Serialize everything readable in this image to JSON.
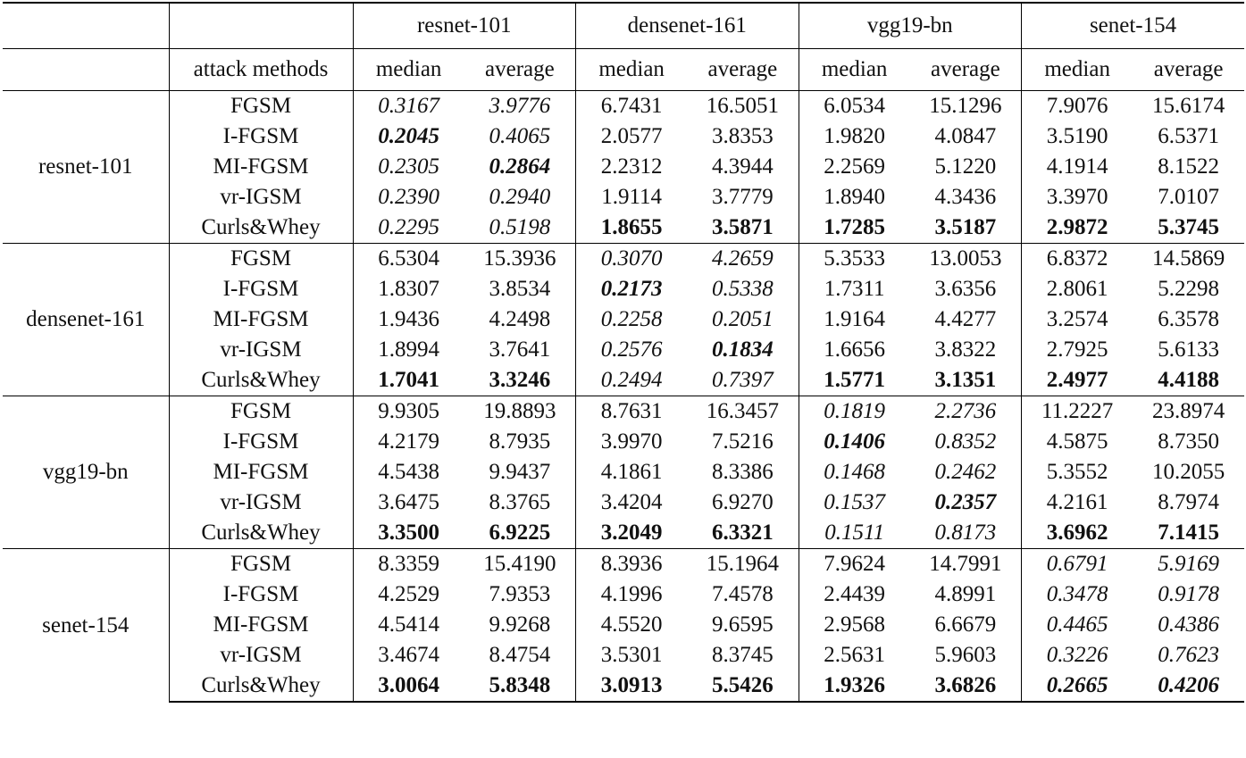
{
  "header": {
    "source_models": [
      "resnet-101",
      "densenet-161",
      "vgg19-bn",
      "senet-154"
    ],
    "method_column_label": "attack methods",
    "stat_labels": [
      "median",
      "average"
    ]
  },
  "groups": [
    {
      "model": "resnet-101",
      "rows": [
        {
          "method": "FGSM",
          "values": [
            "0.3167",
            "3.9776",
            "6.7431",
            "16.5051",
            "6.0534",
            "15.1296",
            "7.9076",
            "15.6174"
          ],
          "styles": [
            "i",
            "i",
            "",
            "",
            "",
            "",
            "",
            ""
          ]
        },
        {
          "method": "I-FGSM",
          "values": [
            "0.2045",
            "0.4065",
            "2.0577",
            "3.8353",
            "1.9820",
            "4.0847",
            "3.5190",
            "6.5371"
          ],
          "styles": [
            "bi",
            "i",
            "",
            "",
            "",
            "",
            "",
            ""
          ]
        },
        {
          "method": "MI-FGSM",
          "values": [
            "0.2305",
            "0.2864",
            "2.2312",
            "4.3944",
            "2.2569",
            "5.1220",
            "4.1914",
            "8.1522"
          ],
          "styles": [
            "i",
            "bi",
            "",
            "",
            "",
            "",
            "",
            ""
          ]
        },
        {
          "method": "vr-IGSM",
          "values": [
            "0.2390",
            "0.2940",
            "1.9114",
            "3.7779",
            "1.8940",
            "4.3436",
            "3.3970",
            "7.0107"
          ],
          "styles": [
            "i",
            "i",
            "",
            "",
            "",
            "",
            "",
            ""
          ]
        },
        {
          "method": "Curls&Whey",
          "values": [
            "0.2295",
            "0.5198",
            "1.8655",
            "3.5871",
            "1.7285",
            "3.5187",
            "2.9872",
            "5.3745"
          ],
          "styles": [
            "i",
            "i",
            "b",
            "b",
            "b",
            "b",
            "b",
            "b"
          ]
        }
      ]
    },
    {
      "model": "densenet-161",
      "rows": [
        {
          "method": "FGSM",
          "values": [
            "6.5304",
            "15.3936",
            "0.3070",
            "4.2659",
            "5.3533",
            "13.0053",
            "6.8372",
            "14.5869"
          ],
          "styles": [
            "",
            "",
            "i",
            "i",
            "",
            "",
            "",
            ""
          ]
        },
        {
          "method": "I-FGSM",
          "values": [
            "1.8307",
            "3.8534",
            "0.2173",
            "0.5338",
            "1.7311",
            "3.6356",
            "2.8061",
            "5.2298"
          ],
          "styles": [
            "",
            "",
            "bi",
            "i",
            "",
            "",
            "",
            ""
          ]
        },
        {
          "method": "MI-FGSM",
          "values": [
            "1.9436",
            "4.2498",
            "0.2258",
            "0.2051",
            "1.9164",
            "4.4277",
            "3.2574",
            "6.3578"
          ],
          "styles": [
            "",
            "",
            "i",
            "i",
            "",
            "",
            "",
            ""
          ]
        },
        {
          "method": "vr-IGSM",
          "values": [
            "1.8994",
            "3.7641",
            "0.2576",
            "0.1834",
            "1.6656",
            "3.8322",
            "2.7925",
            "5.6133"
          ],
          "styles": [
            "",
            "",
            "i",
            "bi",
            "",
            "",
            "",
            ""
          ]
        },
        {
          "method": "Curls&Whey",
          "values": [
            "1.7041",
            "3.3246",
            "0.2494",
            "0.7397",
            "1.5771",
            "3.1351",
            "2.4977",
            "4.4188"
          ],
          "styles": [
            "b",
            "b",
            "i",
            "i",
            "b",
            "b",
            "b",
            "b"
          ]
        }
      ]
    },
    {
      "model": "vgg19-bn",
      "rows": [
        {
          "method": "FGSM",
          "values": [
            "9.9305",
            "19.8893",
            "8.7631",
            "16.3457",
            "0.1819",
            "2.2736",
            "11.2227",
            "23.8974"
          ],
          "styles": [
            "",
            "",
            "",
            "",
            "i",
            "i",
            "",
            ""
          ]
        },
        {
          "method": "I-FGSM",
          "values": [
            "4.2179",
            "8.7935",
            "3.9970",
            "7.5216",
            "0.1406",
            "0.8352",
            "4.5875",
            "8.7350"
          ],
          "styles": [
            "",
            "",
            "",
            "",
            "bi",
            "i",
            "",
            ""
          ]
        },
        {
          "method": "MI-FGSM",
          "values": [
            "4.5438",
            "9.9437",
            "4.1861",
            "8.3386",
            "0.1468",
            "0.2462",
            "5.3552",
            "10.2055"
          ],
          "styles": [
            "",
            "",
            "",
            "",
            "i",
            "i",
            "",
            ""
          ]
        },
        {
          "method": "vr-IGSM",
          "values": [
            "3.6475",
            "8.3765",
            "3.4204",
            "6.9270",
            "0.1537",
            "0.2357",
            "4.2161",
            "8.7974"
          ],
          "styles": [
            "",
            "",
            "",
            "",
            "i",
            "bi",
            "",
            ""
          ]
        },
        {
          "method": "Curls&Whey",
          "values": [
            "3.3500",
            "6.9225",
            "3.2049",
            "6.3321",
            "0.1511",
            "0.8173",
            "3.6962",
            "7.1415"
          ],
          "styles": [
            "b",
            "b",
            "b",
            "b",
            "i",
            "i",
            "b",
            "b"
          ]
        }
      ]
    },
    {
      "model": "senet-154",
      "rows": [
        {
          "method": "FGSM",
          "values": [
            "8.3359",
            "15.4190",
            "8.3936",
            "15.1964",
            "7.9624",
            "14.7991",
            "0.6791",
            "5.9169"
          ],
          "styles": [
            "",
            "",
            "",
            "",
            "",
            "",
            "i",
            "i"
          ]
        },
        {
          "method": "I-FGSM",
          "values": [
            "4.2529",
            "7.9353",
            "4.1996",
            "7.4578",
            "2.4439",
            "4.8991",
            "0.3478",
            "0.9178"
          ],
          "styles": [
            "",
            "",
            "",
            "",
            "",
            "",
            "i",
            "i"
          ]
        },
        {
          "method": "MI-FGSM",
          "values": [
            "4.5414",
            "9.9268",
            "4.5520",
            "9.6595",
            "2.9568",
            "6.6679",
            "0.4465",
            "0.4386"
          ],
          "styles": [
            "",
            "",
            "",
            "",
            "",
            "",
            "i",
            "i"
          ]
        },
        {
          "method": "vr-IGSM",
          "values": [
            "3.4674",
            "8.4754",
            "3.5301",
            "8.3745",
            "2.5631",
            "5.9603",
            "0.3226",
            "0.7623"
          ],
          "styles": [
            "",
            "",
            "",
            "",
            "",
            "",
            "i",
            "i"
          ]
        },
        {
          "method": "Curls&Whey",
          "values": [
            "3.0064",
            "5.8348",
            "3.0913",
            "5.5426",
            "1.9326",
            "3.6826",
            "0.2665",
            "0.4206"
          ],
          "styles": [
            "b",
            "b",
            "b",
            "b",
            "b",
            "b",
            "bi",
            "bi"
          ]
        }
      ]
    }
  ]
}
